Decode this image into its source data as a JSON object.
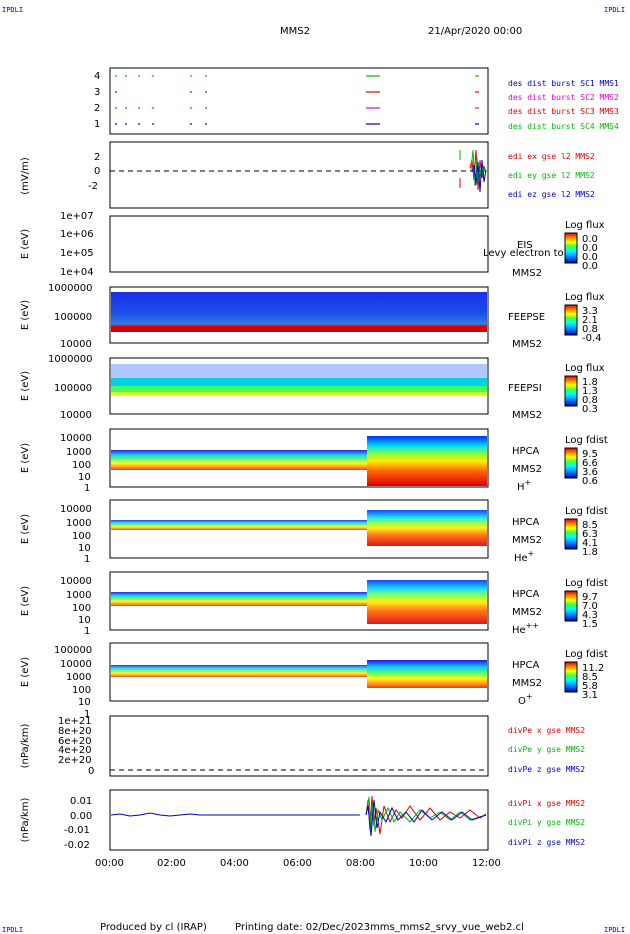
{
  "corner_label": "IPDLI",
  "header": {
    "mission": "MMS2",
    "date_time": "21/Apr/2020 00:00"
  },
  "footer": {
    "produced_by": "Produced by cl (IRAP)",
    "printing_date": "Printing date: 02/Dec/2023",
    "file": "mms_mms2_srvy_vue_web2.cl"
  },
  "colors": {
    "blue": "#0000ff",
    "red": "#ee0000",
    "green": "#00cc00",
    "magenta": "#ee00ee",
    "darkblue": "#0000aa"
  },
  "chart_data": [
    {
      "type": "line",
      "panel": "burst",
      "x_range": [
        "00:00",
        "12:00"
      ],
      "y_ticks": [
        "4",
        "3",
        "2",
        "1"
      ],
      "legend": [
        {
          "name": "des dist burst SC1 MMS1",
          "color": "#0000cc"
        },
        {
          "name": "des dist burst SC2 MMS2",
          "color": "#dd00dd"
        },
        {
          "name": "des dist burst SC3 MMS3",
          "color": "#dd0000"
        },
        {
          "name": "des dist burst SC4 MMS4",
          "color": "#00bb00"
        }
      ]
    },
    {
      "type": "line",
      "panel": "edi",
      "ylabel": "(mV/m)",
      "y_ticks": [
        "2",
        "0",
        "-2"
      ],
      "legend": [
        {
          "name": "edi ex gse l2 MMS2",
          "color": "#dd0000"
        },
        {
          "name": "edi ey gse l2 MMS2",
          "color": "#00bb00"
        },
        {
          "name": "edi ez gse l2 MMS2",
          "color": "#0000cc"
        }
      ]
    },
    {
      "type": "heatmap",
      "panel": "eis",
      "ylabel": "E (eV)",
      "y_ticks": [
        "1e+07",
        "1e+06",
        "1e+05",
        "1e+04"
      ],
      "instrument": "EIS",
      "spacecraft": "MMS2",
      "overlay_text": "Levy electron to",
      "colorbar": {
        "title": "Log flux",
        "ticks": [
          "0.0",
          "0.0",
          "0.0",
          "0.0"
        ]
      }
    },
    {
      "type": "heatmap",
      "panel": "feepse",
      "ylabel": "E (eV)",
      "y_ticks": [
        "1000000",
        "100000",
        "10000"
      ],
      "instrument": "FEEPSE",
      "spacecraft": "MMS2",
      "colorbar": {
        "title": "Log flux",
        "ticks": [
          "3.3",
          "2.1",
          "0.8",
          "-0.4"
        ]
      }
    },
    {
      "type": "heatmap",
      "panel": "feepsi",
      "ylabel": "E (eV)",
      "y_ticks": [
        "1000000",
        "100000",
        "10000"
      ],
      "instrument": "FEEPSI",
      "spacecraft": "MMS2",
      "colorbar": {
        "title": "Log flux",
        "ticks": [
          "1.8",
          "1.3",
          "0.8",
          "0.3"
        ]
      }
    },
    {
      "type": "heatmap",
      "panel": "hpca_h",
      "ylabel": "E (eV)",
      "y_ticks": [
        "10000",
        "1000",
        "100",
        "10",
        "1"
      ],
      "instrument": "HPCA",
      "spacecraft": "MMS2",
      "species": "H",
      "charge": "+",
      "colorbar": {
        "title": "Log fdist",
        "ticks": [
          "9.5",
          "6.6",
          "3.6",
          "0.6"
        ]
      }
    },
    {
      "type": "heatmap",
      "panel": "hpca_he",
      "ylabel": "E (eV)",
      "y_ticks": [
        "10000",
        "1000",
        "100",
        "10",
        "1"
      ],
      "instrument": "HPCA",
      "spacecraft": "MMS2",
      "species": "He",
      "charge": "+",
      "colorbar": {
        "title": "Log fdist",
        "ticks": [
          "8.5",
          "6.3",
          "4.1",
          "1.8"
        ]
      }
    },
    {
      "type": "heatmap",
      "panel": "hpca_hepp",
      "ylabel": "E (eV)",
      "y_ticks": [
        "10000",
        "1000",
        "100",
        "10",
        "1"
      ],
      "instrument": "HPCA",
      "spacecraft": "MMS2",
      "species": "He",
      "charge": "++",
      "colorbar": {
        "title": "Log fdist",
        "ticks": [
          "9.7",
          "7.0",
          "4.3",
          "1.5"
        ]
      }
    },
    {
      "type": "heatmap",
      "panel": "hpca_o",
      "ylabel": "E (eV)",
      "y_ticks": [
        "100000",
        "10000",
        "1000",
        "100",
        "10",
        "1"
      ],
      "instrument": "HPCA",
      "spacecraft": "MMS2",
      "species": "O",
      "charge": "+",
      "colorbar": {
        "title": "Log fdist",
        "ticks": [
          "11.2",
          "8.5",
          "5.8",
          "3.1"
        ]
      }
    },
    {
      "type": "line",
      "panel": "divpe",
      "ylabel": "(nPa/km)",
      "y_ticks": [
        "1e+21",
        "8e+20",
        "6e+20",
        "4e+20",
        "2e+20",
        "0"
      ],
      "legend": [
        {
          "name": "divPe x gse MMS2",
          "color": "#dd0000"
        },
        {
          "name": "divPe y gse MMS2",
          "color": "#00bb00"
        },
        {
          "name": "divPe z gse MMS2",
          "color": "#0000cc"
        }
      ]
    },
    {
      "type": "line",
      "panel": "divpi",
      "ylabel": "(nPa/km)",
      "y_ticks": [
        "0.01",
        "0.00",
        "-0.01",
        "-0.02"
      ],
      "x_ticks": [
        "00:00",
        "02:00",
        "04:00",
        "06:00",
        "08:00",
        "10:00",
        "12:00"
      ],
      "legend": [
        {
          "name": "divPi x gse MMS2",
          "color": "#dd0000"
        },
        {
          "name": "divPi y gse MMS2",
          "color": "#00bb00"
        },
        {
          "name": "divPi z gse MMS2",
          "color": "#0000cc"
        }
      ]
    }
  ]
}
